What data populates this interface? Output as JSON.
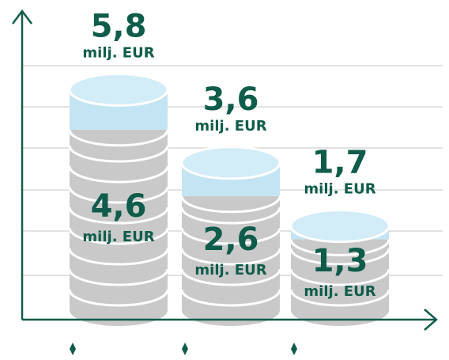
{
  "chart_data": {
    "type": "coin-stack",
    "values": [
      5.8,
      3.6,
      1.7
    ],
    "value_labels": [
      "5,8",
      "3,6",
      "1,7"
    ],
    "inner_values": [
      4.6,
      2.6,
      1.3
    ],
    "inner_value_labels": [
      "4,6",
      "2,6",
      "1,3"
    ],
    "unit": "milj. EUR",
    "color": "#c3e4f3",
    "inner_color": "#c9c9c9",
    "text_color": "#0f5c4a"
  }
}
